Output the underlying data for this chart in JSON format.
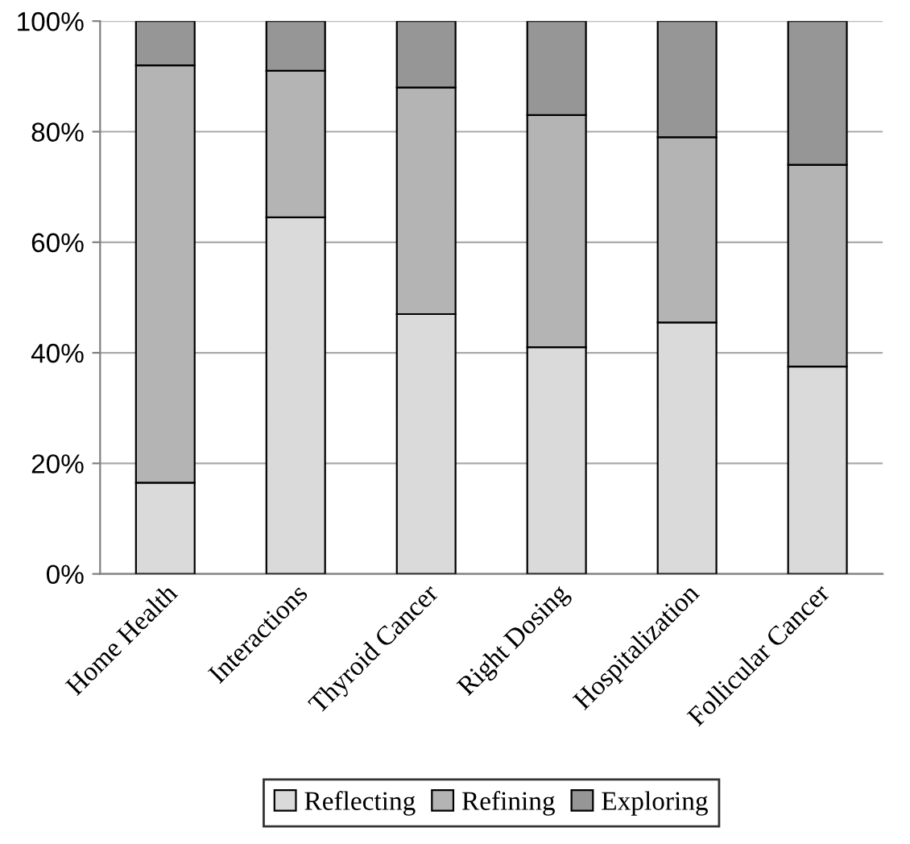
{
  "chart_data": {
    "type": "bar",
    "stacked": true,
    "categories": [
      "Home Health",
      "Interactions",
      "Thyroid Cancer",
      "Right Dosing",
      "Hospitalization",
      "Follicular Cancer"
    ],
    "series": [
      {
        "name": "Reflecting",
        "color": "#dadada",
        "values": [
          16.5,
          64.5,
          47,
          41,
          45.5,
          37.5
        ]
      },
      {
        "name": "Refining",
        "color": "#b4b4b4",
        "values": [
          75.5,
          26.5,
          41,
          42,
          33.5,
          36.5
        ]
      },
      {
        "name": "Exploring",
        "color": "#969696",
        "values": [
          8,
          9,
          12,
          17,
          21,
          26
        ]
      }
    ],
    "ylim": [
      0,
      100
    ],
    "yticks": [
      {
        "value": 0,
        "label": "0%"
      },
      {
        "value": 20,
        "label": "20%"
      },
      {
        "value": 40,
        "label": "40%"
      },
      {
        "value": 60,
        "label": "60%"
      },
      {
        "value": 80,
        "label": "80%"
      },
      {
        "value": 100,
        "label": "100%"
      }
    ],
    "grid": "y",
    "legend": "bottom"
  }
}
